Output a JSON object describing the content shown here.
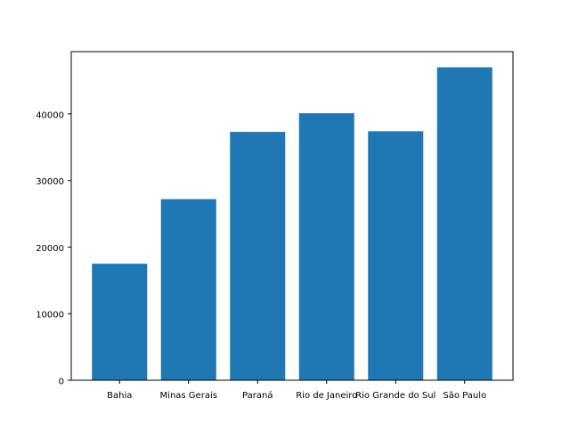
{
  "chart_data": {
    "type": "bar",
    "categories": [
      "Bahia",
      "Minas Gerais",
      "Paraná",
      "Rio de Janeiro",
      "Rio Grande do Sul",
      "São Paulo"
    ],
    "values": [
      17500,
      27200,
      37300,
      40100,
      37400,
      47000
    ],
    "title": "",
    "xlabel": "",
    "ylabel": "",
    "ylim": [
      0,
      49350
    ],
    "yticks": [
      0,
      10000,
      20000,
      30000,
      40000
    ],
    "grid": false,
    "colors": {
      "bar": "#1f77b4",
      "axis": "#000000",
      "background": "#ffffff"
    }
  }
}
